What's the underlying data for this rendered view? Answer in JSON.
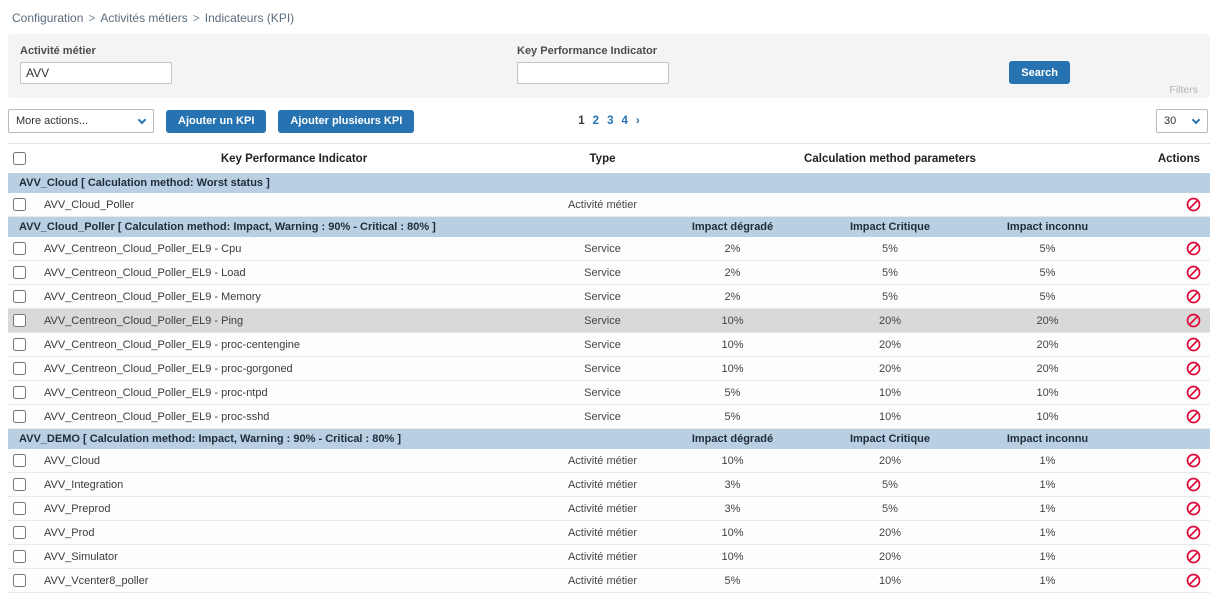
{
  "breadcrumb": {
    "separator": ">",
    "items": [
      {
        "label": "Configuration"
      },
      {
        "label": "Activités métiers"
      },
      {
        "label": "Indicateurs (KPI)"
      }
    ]
  },
  "filters": {
    "activity": {
      "label": "Activité métier",
      "value": "AVV"
    },
    "kpi": {
      "label": "Key Performance Indicator",
      "value": ""
    },
    "search_button": "Search",
    "filters_link": "Filters"
  },
  "toolbar": {
    "more_actions": "More actions...",
    "add_one_label": "Ajouter un KPI",
    "add_many_label": "Ajouter plusieurs KPI",
    "pagination": {
      "pages": [
        "1",
        "2",
        "3",
        "4"
      ],
      "current": "1",
      "next": "›"
    },
    "page_size": "30"
  },
  "table": {
    "headers": {
      "kpi": "Key Performance Indicator",
      "type": "Type",
      "calc": "Calculation method parameters",
      "actions": "Actions"
    },
    "groups": [
      {
        "title": "AVV_Cloud [ Calculation method: Worst status ]",
        "rows": [
          {
            "name": "AVV_Cloud_Poller",
            "type": "Activité métier",
            "values": [
              "",
              "",
              ""
            ]
          }
        ]
      },
      {
        "title": "AVV_Cloud_Poller [ Calculation method: Impact, Warning : 90% - Critical : 80% ]",
        "param_headers": [
          "Impact dégradé",
          "Impact Critique",
          "Impact inconnu"
        ],
        "rows": [
          {
            "name": "AVV_Centreon_Cloud_Poller_EL9 - Cpu",
            "type": "Service",
            "values": [
              "2%",
              "5%",
              "5%"
            ]
          },
          {
            "name": "AVV_Centreon_Cloud_Poller_EL9 - Load",
            "type": "Service",
            "values": [
              "2%",
              "5%",
              "5%"
            ]
          },
          {
            "name": "AVV_Centreon_Cloud_Poller_EL9 - Memory",
            "type": "Service",
            "values": [
              "2%",
              "5%",
              "5%"
            ]
          },
          {
            "name": "AVV_Centreon_Cloud_Poller_EL9 - Ping",
            "type": "Service",
            "values": [
              "10%",
              "20%",
              "20%"
            ],
            "highlighted": true
          },
          {
            "name": "AVV_Centreon_Cloud_Poller_EL9 - proc-centengine",
            "type": "Service",
            "values": [
              "10%",
              "20%",
              "20%"
            ]
          },
          {
            "name": "AVV_Centreon_Cloud_Poller_EL9 - proc-gorgoned",
            "type": "Service",
            "values": [
              "10%",
              "20%",
              "20%"
            ]
          },
          {
            "name": "AVV_Centreon_Cloud_Poller_EL9 - proc-ntpd",
            "type": "Service",
            "values": [
              "5%",
              "10%",
              "10%"
            ]
          },
          {
            "name": "AVV_Centreon_Cloud_Poller_EL9 - proc-sshd",
            "type": "Service",
            "values": [
              "5%",
              "10%",
              "10%"
            ]
          }
        ]
      },
      {
        "title": "AVV_DEMO [ Calculation method: Impact, Warning : 90% - Critical : 80% ]",
        "param_headers": [
          "Impact dégradé",
          "Impact Critique",
          "Impact inconnu"
        ],
        "rows": [
          {
            "name": "AVV_Cloud",
            "type": "Activité métier",
            "values": [
              "10%",
              "20%",
              "1%"
            ]
          },
          {
            "name": "AVV_Integration",
            "type": "Activité métier",
            "values": [
              "3%",
              "5%",
              "1%"
            ]
          },
          {
            "name": "AVV_Preprod",
            "type": "Activité métier",
            "values": [
              "3%",
              "5%",
              "1%"
            ]
          },
          {
            "name": "AVV_Prod",
            "type": "Activité métier",
            "values": [
              "10%",
              "20%",
              "1%"
            ]
          },
          {
            "name": "AVV_Simulator",
            "type": "Activité métier",
            "values": [
              "10%",
              "20%",
              "1%"
            ]
          },
          {
            "name": "AVV_Vcenter8_poller",
            "type": "Activité métier",
            "values": [
              "5%",
              "10%",
              "1%"
            ]
          }
        ]
      }
    ]
  },
  "colors": {
    "accent_blue": "#2773b2",
    "group_row_blue": "#b9cfe2",
    "danger_red": "#e00b3c",
    "panel_gray": "#f4f4f4"
  }
}
